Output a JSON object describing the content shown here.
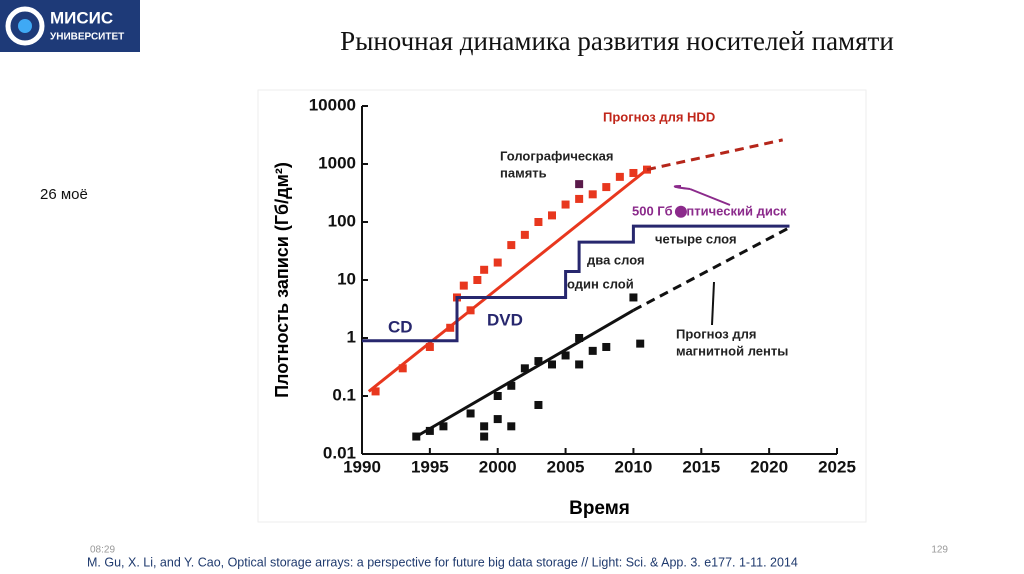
{
  "header": {
    "logo": [
      "МИСИС",
      "УНИВЕРСИТЕТ"
    ],
    "title": "Рыночная динамика развития носителей памяти"
  },
  "side_note": "26 моё",
  "footer": {
    "time": "08:29",
    "page": "129",
    "citation": "M. Gu, X. Li, and Y. Cao, Optical storage arrays: a perspective for future big data storage // Light: Sci. & App. 3. e177. 1-11. 2014"
  },
  "chart_data": {
    "type": "scatter",
    "xlabel": "Время",
    "ylabel": "Плотность записи (Гб/дм²)",
    "xlim": [
      1990,
      2025
    ],
    "xticks": [
      1990,
      1995,
      2000,
      2005,
      2010,
      2015,
      2020,
      2025
    ],
    "ylim": [
      0.01,
      10000
    ],
    "yticks": [
      0.01,
      0.1,
      1,
      10,
      100,
      1000,
      10000
    ],
    "log_y": true,
    "series": [
      {
        "name": "HDD",
        "style": "markers",
        "marker": "square",
        "color": "#e8371e",
        "x": [
          1991,
          1993,
          1995,
          1996.5,
          1997,
          1997.5,
          1998,
          1998.5,
          1999,
          2000,
          2001,
          2002,
          2003,
          2004,
          2005,
          2006,
          2007,
          2008,
          2009,
          2010,
          2011
        ],
        "values": [
          0.12,
          0.3,
          0.7,
          1.5,
          5,
          8,
          3,
          10,
          15,
          20,
          40,
          60,
          100,
          130,
          200,
          250,
          300,
          400,
          600,
          700,
          800
        ]
      },
      {
        "name": "HDD trend",
        "style": "line",
        "color": "#e8371e",
        "x": [
          1990.5,
          2011
        ],
        "values": [
          0.12,
          800
        ]
      },
      {
        "name": "Прогноз HDD",
        "style": "dashed",
        "color": "#b5261a",
        "x": [
          2011,
          2021
        ],
        "values": [
          800,
          2600
        ]
      },
      {
        "name": "Лента",
        "style": "markers",
        "marker": "square",
        "color": "#111111",
        "x": [
          1994,
          1995,
          1996,
          1998,
          1999,
          1999,
          2000,
          2000,
          2001,
          2001,
          2002,
          2003,
          2003,
          2004,
          2005,
          2006,
          2006,
          2007,
          2008,
          2010,
          2010.5
        ],
        "values": [
          0.02,
          0.025,
          0.03,
          0.05,
          0.03,
          0.02,
          0.04,
          0.1,
          0.03,
          0.15,
          0.3,
          0.07,
          0.4,
          0.35,
          0.5,
          1,
          0.35,
          0.6,
          0.7,
          5,
          0.8
        ]
      },
      {
        "name": "Лента тренд",
        "style": "line",
        "color": "#111111",
        "x": [
          1994,
          2010
        ],
        "values": [
          0.02,
          3
        ]
      },
      {
        "name": "Прогноз ленты",
        "style": "dashed",
        "color": "#111111",
        "x": [
          2010,
          2021.5
        ],
        "values": [
          3,
          80
        ]
      },
      {
        "name": "Оптические диски",
        "style": "line",
        "color": "#27276e",
        "x": [
          1990,
          1997,
          1997,
          2005,
          2005,
          2006,
          2006,
          2010,
          2010,
          2021.5
        ],
        "values": [
          0.9,
          0.9,
          5,
          5,
          14,
          14,
          45,
          45,
          85,
          85
        ]
      },
      {
        "name": "Голографическая память",
        "style": "markers",
        "marker": "square",
        "color": "#5a1a4a",
        "x": [
          2006
        ],
        "values": [
          450
        ]
      },
      {
        "name": "500 Гб Оптический диск",
        "style": "markers",
        "marker": "circle",
        "color": "#8b2a8b",
        "x": [
          2013.5
        ],
        "values": [
          150
        ]
      }
    ],
    "annotations": [
      "Прогноз для HDD",
      "Голографическая",
      "память",
      "500 Гб Оптический диск",
      "четыре слоя",
      "два слоя",
      "один слой",
      "CD",
      "DVD",
      "Прогноз для",
      "магнитной ленты"
    ]
  }
}
